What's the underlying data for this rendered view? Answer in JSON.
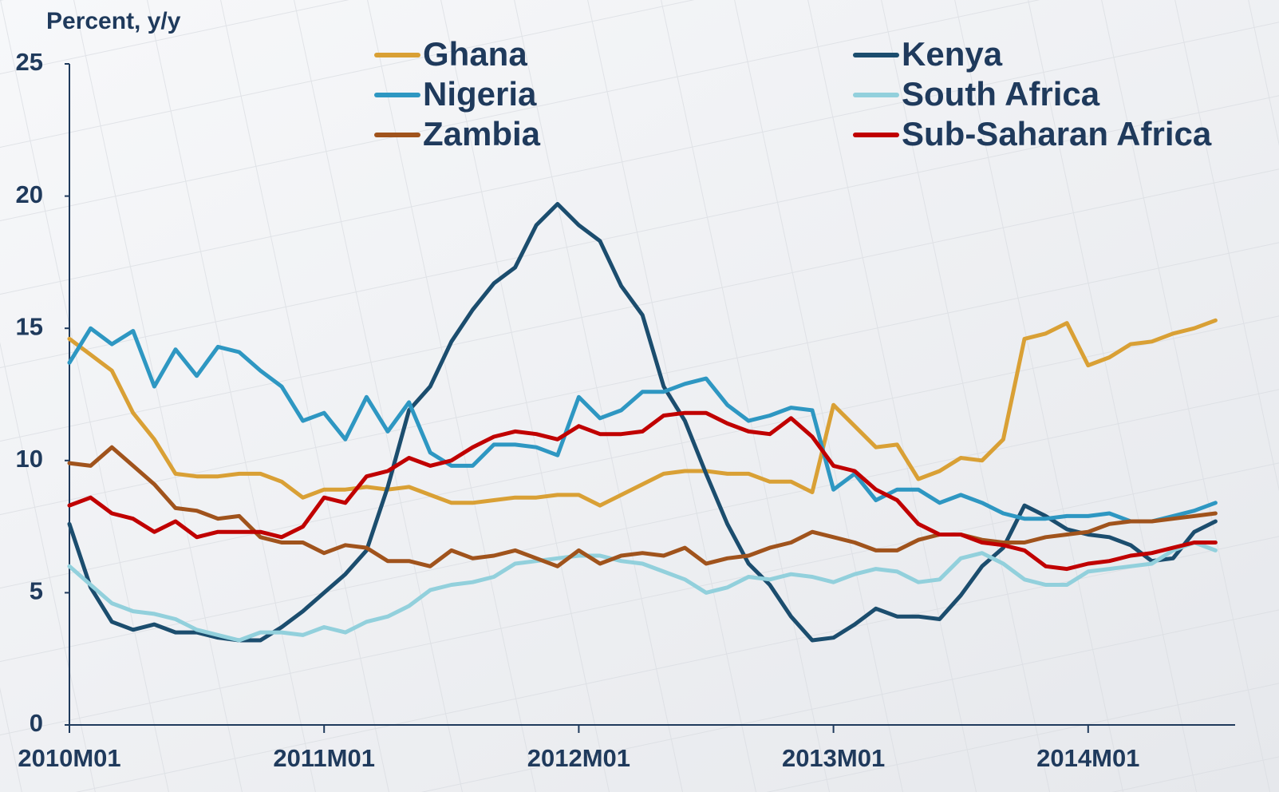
{
  "chart_data": {
    "type": "line",
    "y_axis_label": "Percent, y/y",
    "categories": [
      "2010M01",
      null,
      null,
      null,
      null,
      null,
      null,
      null,
      null,
      null,
      null,
      null,
      "2011M01",
      null,
      null,
      null,
      null,
      null,
      null,
      null,
      null,
      null,
      null,
      null,
      "2012M01",
      null,
      null,
      null,
      null,
      null,
      null,
      null,
      null,
      null,
      null,
      null,
      "2013M01",
      null,
      null,
      null,
      null,
      null,
      null,
      null,
      null,
      null,
      null,
      null,
      "2014M01",
      null,
      null,
      null,
      null,
      null,
      null
    ],
    "ylim": [
      0,
      25
    ],
    "yticks": [
      0,
      5,
      10,
      15,
      20,
      25
    ],
    "legend": "top",
    "series": [
      {
        "name": "Ghana",
        "color": "#d9a035",
        "values": [
          14.6,
          14.0,
          13.4,
          11.8,
          10.8,
          9.5,
          9.4,
          9.4,
          9.5,
          9.5,
          9.2,
          8.6,
          8.9,
          8.9,
          9.0,
          8.9,
          9.0,
          8.7,
          8.4,
          8.4,
          8.5,
          8.6,
          8.6,
          8.7,
          8.7,
          8.3,
          8.7,
          9.1,
          9.5,
          9.6,
          9.6,
          9.5,
          9.5,
          9.2,
          9.2,
          8.8,
          12.1,
          11.3,
          10.5,
          10.6,
          9.3,
          9.6,
          10.1,
          10.0,
          10.8,
          14.6,
          14.8,
          15.2,
          13.6,
          13.9,
          14.4,
          14.5,
          14.8,
          15.0,
          15.3
        ]
      },
      {
        "name": "Kenya",
        "color": "#1b4d6e",
        "values": [
          7.6,
          5.2,
          3.9,
          3.6,
          3.8,
          3.5,
          3.5,
          3.3,
          3.2,
          3.2,
          3.7,
          4.3,
          5.0,
          5.7,
          6.6,
          9.0,
          11.9,
          12.8,
          14.5,
          15.7,
          16.7,
          17.3,
          18.9,
          19.7,
          18.9,
          18.3,
          16.6,
          15.5,
          12.8,
          11.5,
          9.5,
          7.6,
          6.1,
          5.3,
          4.1,
          3.2,
          3.3,
          3.8,
          4.4,
          4.1,
          4.1,
          4.0,
          4.9,
          6.0,
          6.7,
          8.3,
          7.9,
          7.4,
          7.2,
          7.1,
          6.8,
          6.2,
          6.3,
          7.3,
          7.7
        ]
      },
      {
        "name": "Nigeria",
        "color": "#2e97c2",
        "values": [
          13.7,
          15.0,
          14.4,
          14.9,
          12.8,
          14.2,
          13.2,
          14.3,
          14.1,
          13.4,
          12.8,
          11.5,
          11.8,
          10.8,
          12.4,
          11.1,
          12.2,
          10.3,
          9.8,
          9.8,
          10.6,
          10.6,
          10.5,
          10.2,
          12.4,
          11.6,
          11.9,
          12.6,
          12.6,
          12.9,
          13.1,
          12.1,
          11.5,
          11.7,
          12.0,
          11.9,
          8.9,
          9.5,
          8.5,
          8.9,
          8.9,
          8.4,
          8.7,
          8.4,
          8.0,
          7.8,
          7.8,
          7.9,
          7.9,
          8.0,
          7.7,
          7.7,
          7.9,
          8.1,
          8.4
        ]
      },
      {
        "name": "South Africa",
        "color": "#92d0dc",
        "values": [
          6.0,
          5.3,
          4.6,
          4.3,
          4.2,
          4.0,
          3.6,
          3.4,
          3.2,
          3.5,
          3.5,
          3.4,
          3.7,
          3.5,
          3.9,
          4.1,
          4.5,
          5.1,
          5.3,
          5.4,
          5.6,
          6.1,
          6.2,
          6.3,
          6.4,
          6.4,
          6.2,
          6.1,
          5.8,
          5.5,
          5.0,
          5.2,
          5.6,
          5.5,
          5.7,
          5.6,
          5.4,
          5.7,
          5.9,
          5.8,
          5.4,
          5.5,
          6.3,
          6.5,
          6.1,
          5.5,
          5.3,
          5.3,
          5.8,
          5.9,
          6.0,
          6.1,
          6.6,
          6.9,
          6.6
        ]
      },
      {
        "name": "Zambia",
        "color": "#a0531c",
        "values": [
          9.9,
          9.8,
          10.5,
          9.8,
          9.1,
          8.2,
          8.1,
          7.8,
          7.9,
          7.1,
          6.9,
          6.9,
          6.5,
          6.8,
          6.7,
          6.2,
          6.2,
          6.0,
          6.6,
          6.3,
          6.4,
          6.6,
          6.3,
          6.0,
          6.6,
          6.1,
          6.4,
          6.5,
          6.4,
          6.7,
          6.1,
          6.3,
          6.4,
          6.7,
          6.9,
          7.3,
          7.1,
          6.9,
          6.6,
          6.6,
          7.0,
          7.2,
          7.2,
          7.0,
          6.9,
          6.9,
          7.1,
          7.2,
          7.3,
          7.6,
          7.7,
          7.7,
          7.8,
          7.9,
          8.0
        ]
      },
      {
        "name": "Sub-Saharan Africa",
        "color": "#c00000",
        "values": [
          8.3,
          8.6,
          8.0,
          7.8,
          7.3,
          7.7,
          7.1,
          7.3,
          7.3,
          7.3,
          7.1,
          7.5,
          8.6,
          8.4,
          9.4,
          9.6,
          10.1,
          9.8,
          10.0,
          10.5,
          10.9,
          11.1,
          11.0,
          10.8,
          11.3,
          11.0,
          11.0,
          11.1,
          11.7,
          11.8,
          11.8,
          11.4,
          11.1,
          11.0,
          11.6,
          10.9,
          9.8,
          9.6,
          8.9,
          8.5,
          7.6,
          7.2,
          7.2,
          6.9,
          6.8,
          6.6,
          6.0,
          5.9,
          6.1,
          6.2,
          6.4,
          6.5,
          6.7,
          6.9,
          6.9
        ]
      }
    ]
  }
}
